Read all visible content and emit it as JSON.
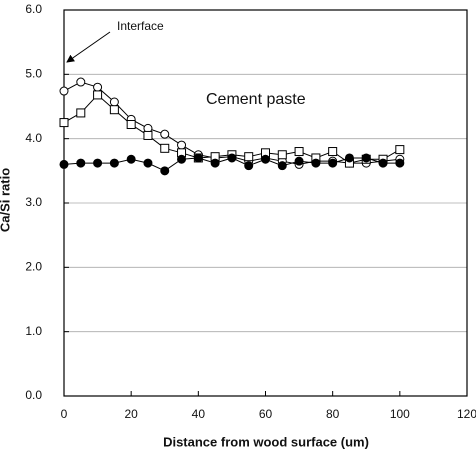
{
  "chart_data": {
    "type": "line",
    "xlabel": "Distance from wood surface (um)",
    "ylabel": "Ca/Si ratio",
    "annotations": [
      "Interface",
      "Cement paste"
    ],
    "x": [
      0,
      5,
      10,
      15,
      20,
      25,
      30,
      35,
      40,
      45,
      50,
      55,
      60,
      65,
      70,
      75,
      80,
      85,
      90,
      95,
      100
    ],
    "series": [
      {
        "color": "#000000",
        "marker": "circle",
        "filled": false,
        "values": [
          4.74,
          4.88,
          4.8,
          4.57,
          4.3,
          4.16,
          4.07,
          3.9,
          3.75,
          3.7,
          3.72,
          3.65,
          3.7,
          3.65,
          3.6,
          3.65,
          3.65,
          3.62,
          3.62,
          3.65,
          3.68
        ]
      },
      {
        "color": "#000000",
        "marker": "square",
        "filled": false,
        "values": [
          4.25,
          4.4,
          4.68,
          4.45,
          4.22,
          4.05,
          3.85,
          3.78,
          3.7,
          3.72,
          3.75,
          3.72,
          3.78,
          3.75,
          3.8,
          3.7,
          3.8,
          3.62,
          3.68,
          3.68,
          3.83
        ]
      },
      {
        "color": "#000000",
        "marker": "circle",
        "filled": true,
        "values": [
          3.6,
          3.62,
          3.62,
          3.62,
          3.68,
          3.62,
          3.5,
          3.68,
          3.7,
          3.62,
          3.7,
          3.58,
          3.68,
          3.58,
          3.65,
          3.62,
          3.62,
          3.7,
          3.7,
          3.62,
          3.62
        ]
      }
    ],
    "xlim": [
      0,
      120
    ],
    "xticks": [
      0,
      20,
      40,
      60,
      80,
      100,
      120
    ],
    "ylim": [
      0,
      6
    ],
    "yticks": [
      {
        "value": 0,
        "label": "0.0"
      },
      {
        "value": 1,
        "label": "1.0"
      },
      {
        "value": 2,
        "label": "2.0"
      },
      {
        "value": 3,
        "label": "3.0"
      },
      {
        "value": 4,
        "label": "4.0"
      },
      {
        "value": 5,
        "label": "5.0"
      },
      {
        "value": 6,
        "label": "6.0"
      }
    ],
    "grid": true
  }
}
